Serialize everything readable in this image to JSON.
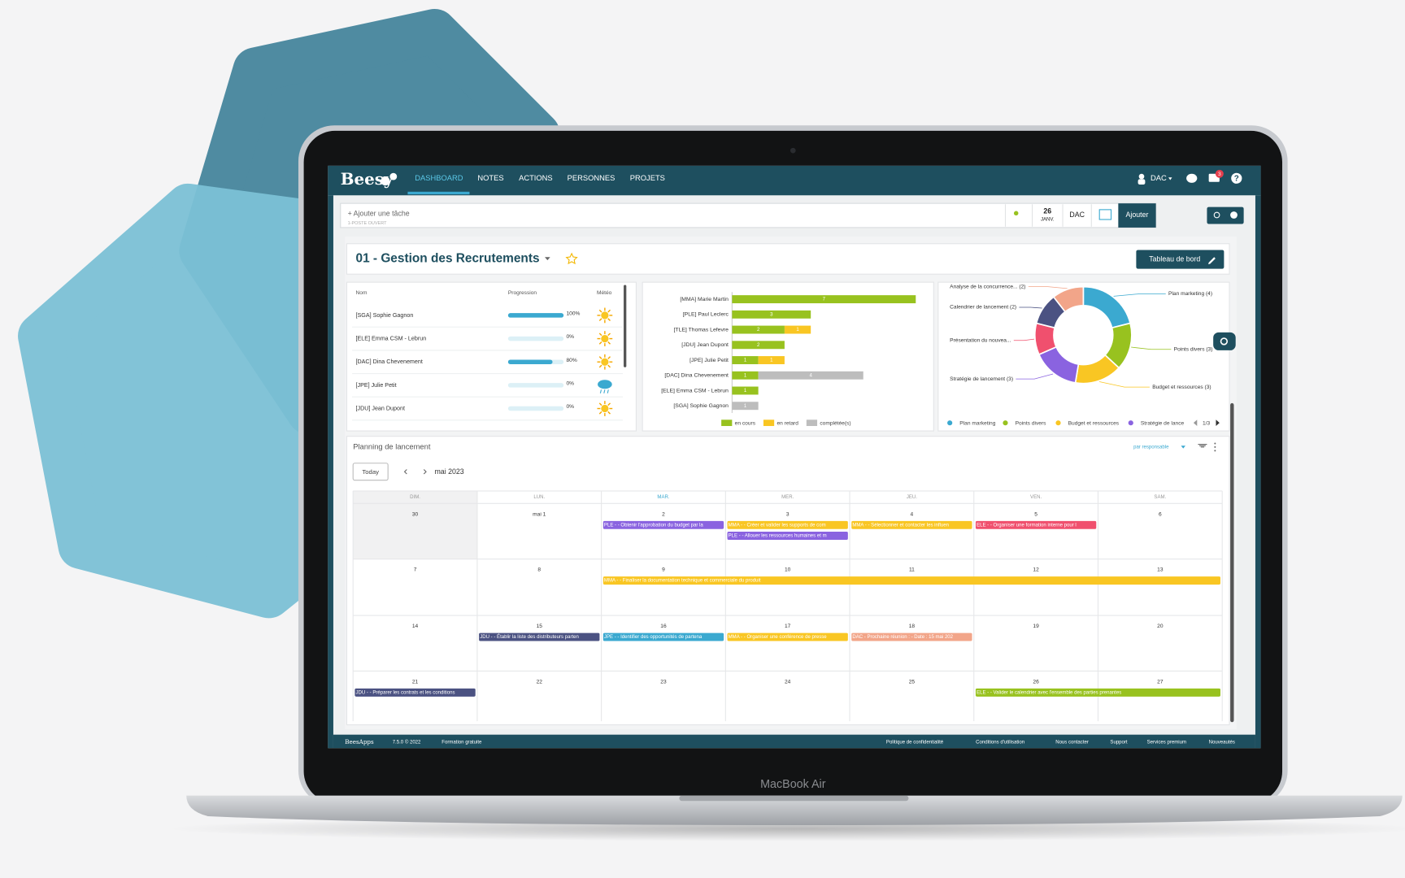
{
  "nav": {
    "brand": "Beesy",
    "items": [
      "DASHBOARD",
      "NOTES",
      "ACTIONS",
      "PERSONNES",
      "PROJETS"
    ],
    "user": "DAC",
    "notifications": 3
  },
  "toolbar": {
    "placeholder": "+ Ajouter une tâche",
    "hint": "1-POSTE OUVERT",
    "date_day": "26",
    "date_month": "JANV.",
    "user": "DAC",
    "button": "Ajouter"
  },
  "project": {
    "title": "01 - Gestion des Recrutements",
    "button": "Tableau de bord"
  },
  "progress_table": {
    "headers": [
      "Nom",
      "Progression",
      "Météo"
    ],
    "rows": [
      {
        "name": "[SGA] Sophie Gagnon",
        "progress": 100,
        "progress_label": "100%"
      },
      {
        "name": "[ELE] Emma CSM - Lebrun",
        "progress": 0,
        "progress_label": "0%"
      },
      {
        "name": "[DAC] Dina Chevenement",
        "progress": 80,
        "progress_label": "80%"
      },
      {
        "name": "[JPE] Julie Petit",
        "progress": 0,
        "progress_label": "0%"
      },
      {
        "name": "[JDU] Jean Dupont",
        "progress": 0,
        "progress_label": "0%"
      }
    ]
  },
  "chart_data": [
    {
      "type": "bar",
      "orientation": "horizontal",
      "stacked": true,
      "categories": [
        "[MMA] Marie Martin",
        "[PLE] Paul Leclerc",
        "[TLE] Thomas Lefevre",
        "[JDU] Jean Dupont",
        "[JPE] Julie Petit",
        "[DAC] Dina Chevenement",
        "[ELE] Emma CSM - Lebrun",
        "[SGA] Sophie Gagnon"
      ],
      "series": [
        {
          "name": "en cours",
          "color": "#98c21f",
          "values": [
            7,
            3,
            2,
            2,
            1,
            1,
            1,
            null
          ]
        },
        {
          "name": "en retard",
          "color": "#f9c623",
          "values": [
            null,
            null,
            1,
            null,
            1,
            null,
            null,
            null
          ]
        },
        {
          "name": "complétée(s)",
          "color": "#bdbdbd",
          "values": [
            null,
            null,
            null,
            null,
            null,
            4,
            null,
            1
          ]
        }
      ]
    },
    {
      "type": "pie",
      "donut": true,
      "categories": [
        "Plan marketing (4)",
        "Points divers (3)",
        "Budget et ressources (3)",
        "Stratégie de lancement (3)",
        "Présentation du nouvea...",
        "Calendrier de lancement (2)",
        "Analyse de la concurrence... (2)"
      ],
      "values": [
        4,
        3,
        3,
        3,
        2,
        2,
        2
      ],
      "colors": [
        "#3ba9d0",
        "#98c21f",
        "#f9c623",
        "#8a63e0",
        "#f0506e",
        "#4b5282",
        "#f2a589"
      ],
      "legend": {
        "entries": [
          "Plan marketing",
          "Points divers",
          "Budget et ressources",
          "Stratégie de lance"
        ],
        "page": "1/3"
      }
    }
  ],
  "calendar": {
    "title": "Planning de lancement",
    "filter": "par responsable",
    "today": "Today",
    "month": "mai 2023",
    "weekdays": [
      "DIM.",
      "LUN.",
      "MAR.",
      "MER.",
      "JEU.",
      "VEN.",
      "SAM."
    ],
    "weeks": [
      {
        "days": [
          {
            "date": "30",
            "events": []
          },
          {
            "date": "mai 1",
            "events": []
          },
          {
            "date": "2",
            "events": [
              {
                "text": "PLE - - Obtenir l'approbation du budget par la",
                "color": "#8a63e0"
              }
            ]
          },
          {
            "date": "3",
            "events": [
              {
                "text": "MMA - - Créer et valider les supports de com",
                "color": "#f9c623"
              },
              {
                "text": "PLE - - Allouer les ressources humaines et m",
                "color": "#8a63e0"
              }
            ]
          },
          {
            "date": "4",
            "events": [
              {
                "text": "MMA - - Sélectionner et contacter les influen",
                "color": "#f9c623"
              }
            ]
          },
          {
            "date": "5",
            "events": [
              {
                "text": "ELE - - Organiser une formation interne pour l",
                "color": "#f0506e"
              }
            ]
          },
          {
            "date": "6",
            "events": []
          }
        ]
      },
      {
        "days": [
          {
            "date": "7",
            "events": []
          },
          {
            "date": "8",
            "events": []
          },
          {
            "date": "9",
            "events": [
              {
                "text": "MMA - - Finaliser la documentation technique et commerciale du produit",
                "color": "#f9c623",
                "span": 5
              }
            ]
          },
          {
            "date": "10",
            "events": []
          },
          {
            "date": "11",
            "events": []
          },
          {
            "date": "12",
            "events": []
          },
          {
            "date": "13",
            "events": []
          }
        ]
      },
      {
        "days": [
          {
            "date": "14",
            "events": []
          },
          {
            "date": "15",
            "events": [
              {
                "text": "JDU - - Établir la liste des distributeurs parten",
                "color": "#4b5282"
              }
            ]
          },
          {
            "date": "16",
            "events": [
              {
                "text": "JPE - - Identifier des opportunités de partena",
                "color": "#3ba9d0"
              }
            ]
          },
          {
            "date": "17",
            "events": [
              {
                "text": "MMA - - Organiser une conférence de presse",
                "color": "#f9c623"
              }
            ]
          },
          {
            "date": "18",
            "events": [
              {
                "text": "DAC - Prochaine réunion : - Date : 15 mai 202",
                "color": "#f2a589"
              }
            ]
          },
          {
            "date": "19",
            "events": []
          },
          {
            "date": "20",
            "events": []
          }
        ]
      },
      {
        "days": [
          {
            "date": "21",
            "events": [
              {
                "text": "JDU - - Préparer les contrats et les conditions",
                "color": "#4b5282"
              }
            ]
          },
          {
            "date": "22",
            "events": []
          },
          {
            "date": "23",
            "events": []
          },
          {
            "date": "24",
            "events": []
          },
          {
            "date": "25",
            "events": []
          },
          {
            "date": "26",
            "events": [
              {
                "text": "ELE - - Valider le calendrier avec l'ensemble des parties prenantes",
                "color": "#98c21f",
                "span": 2
              }
            ]
          },
          {
            "date": "27",
            "events": []
          }
        ]
      }
    ]
  },
  "footer": {
    "brand": "BeesApps",
    "version": "7.5.0 © 2022",
    "training": "Formation gratuite",
    "links": [
      "Politique de confidentialité",
      "Conditions d'utilisation",
      "Nous contacter",
      "Support",
      "Services premium",
      "Nouveautés"
    ]
  },
  "device": "MacBook Air"
}
